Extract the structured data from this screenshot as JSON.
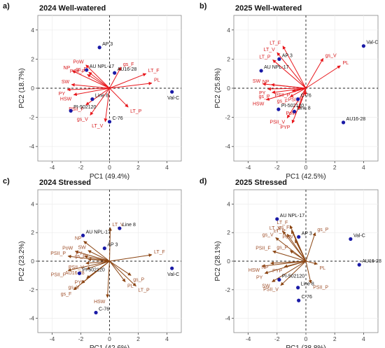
{
  "chart_data": [
    {
      "type": "scatter",
      "panel_label": "a)",
      "title": "2024 Well-watered",
      "xlabel": "PC1 (49.4%)",
      "ylabel": "PC2 (18.7%)",
      "xlim": [
        -5,
        5
      ],
      "ylim": [
        -5,
        5
      ],
      "xticks": [
        -4,
        -2,
        0,
        2,
        4
      ],
      "yticks": [
        -4,
        -2,
        0,
        2,
        4
      ],
      "points": [
        {
          "label": "AP 3",
          "x": -0.7,
          "y": 2.8
        },
        {
          "label": "AU NPL-17",
          "x": -1.6,
          "y": 1.25
        },
        {
          "label": "AU16-28",
          "x": 0.35,
          "y": 1.05
        },
        {
          "label": "Val-C",
          "x": 4.35,
          "y": -0.25
        },
        {
          "label": "Line 8",
          "x": -1.2,
          "y": -0.75
        },
        {
          "label": "PI-502120",
          "x": -2.7,
          "y": -1.55
        },
        {
          "label": "C-76",
          "x": 0.0,
          "y": -2.3
        }
      ],
      "loadings": [
        {
          "label": "PoW",
          "x": -1.65,
          "y": 1.6
        },
        {
          "label": "NP",
          "x": -2.6,
          "y": 1.2
        },
        {
          "label": "PSII_P",
          "x": -1.55,
          "y": 0.95
        },
        {
          "label": "gs_F",
          "x": 0.8,
          "y": 1.45
        },
        {
          "label": "LT_F",
          "x": 2.55,
          "y": 1.0
        },
        {
          "label": "PL",
          "x": 2.95,
          "y": 0.35
        },
        {
          "label": "SW",
          "x": -2.65,
          "y": 0.25
        },
        {
          "label": "PY",
          "x": -2.95,
          "y": -0.1
        },
        {
          "label": "HSW",
          "x": -2.5,
          "y": -0.45
        },
        {
          "label": "PSII_F",
          "x": -1.65,
          "y": -1.15
        },
        {
          "label": "gs_V",
          "x": -1.35,
          "y": -1.85
        },
        {
          "label": "LT_V",
          "x": -0.3,
          "y": -2.3
        },
        {
          "label": "LT_P",
          "x": 1.3,
          "y": -1.3
        },
        {
          "label": "gs_F",
          "x": -1.45,
          "y": 1.1
        }
      ]
    },
    {
      "type": "scatter",
      "panel_label": "b)",
      "title": "2025 Well-watered",
      "xlabel": "PC1 (42.5%)",
      "ylabel": "PC2 (25.8%)",
      "xlim": [
        -5,
        5
      ],
      "ylim": [
        -5,
        5
      ],
      "xticks": [
        -4,
        -2,
        0,
        2,
        4
      ],
      "yticks": [
        -4,
        -2,
        0,
        2,
        4
      ],
      "points": [
        {
          "label": "AP 3",
          "x": -1.85,
          "y": 2.0
        },
        {
          "label": "AU NPL-17",
          "x": -3.1,
          "y": 1.2
        },
        {
          "label": "Val-C",
          "x": 4.0,
          "y": 2.9
        },
        {
          "label": "C-76",
          "x": -0.55,
          "y": -0.75
        },
        {
          "label": "PI-502120",
          "x": -1.9,
          "y": -1.45
        },
        {
          "label": "Line 8",
          "x": -0.8,
          "y": -1.6
        },
        {
          "label": "AU16-28",
          "x": 2.6,
          "y": -2.35
        }
      ],
      "loadings": [
        {
          "label": "LT_F",
          "x": -1.6,
          "y": 2.9
        },
        {
          "label": "LT_V",
          "x": -2.0,
          "y": 2.45
        },
        {
          "label": "LT_P",
          "x": -2.3,
          "y": 1.95
        },
        {
          "label": "gs_V",
          "x": 1.2,
          "y": 2.05
        },
        {
          "label": "PL",
          "x": 2.4,
          "y": 1.55
        },
        {
          "label": "SW",
          "x": -3.0,
          "y": 0.3
        },
        {
          "label": "NP",
          "x": -2.4,
          "y": 0.25
        },
        {
          "label": "PY",
          "x": -2.65,
          "y": -0.05
        },
        {
          "label": "gs_P",
          "x": -2.35,
          "y": -0.3
        },
        {
          "label": "HSW",
          "x": -2.75,
          "y": -0.8
        },
        {
          "label": "gs_F",
          "x": -1.1,
          "y": -0.6
        },
        {
          "label": "PSII_P",
          "x": -0.95,
          "y": -0.2
        },
        {
          "label": "PSII_V",
          "x": -1.3,
          "y": -2.05
        },
        {
          "label": "PYP",
          "x": -0.95,
          "y": -2.4
        },
        {
          "label": "PoW",
          "x": -0.5,
          "y": -1.45
        },
        {
          "label": "PSII_F",
          "x": -0.05,
          "y": -0.5
        }
      ]
    },
    {
      "type": "scatter",
      "panel_label": "c)",
      "title": "2024 Stressed",
      "xlabel": "PC1 (42.6%)",
      "ylabel": "PC2 (23.2%)",
      "xlim": [
        -5,
        5
      ],
      "ylim": [
        -5,
        5
      ],
      "xticks": [
        -4,
        -2,
        0,
        2,
        4
      ],
      "yticks": [
        -4,
        -2,
        0,
        2,
        4
      ],
      "points": [
        {
          "label": "AU NPL-17",
          "x": -1.85,
          "y": 1.8
        },
        {
          "label": "AP 3",
          "x": -0.35,
          "y": 0.9
        },
        {
          "label": "Line 8",
          "x": 0.7,
          "y": 2.3
        },
        {
          "label": "Val-C",
          "x": 4.35,
          "y": -0.5
        },
        {
          "label": "PI-502120",
          "x": -2.1,
          "y": -0.85
        },
        {
          "label": "C-76",
          "x": -0.95,
          "y": -3.6
        }
      ],
      "loadings": [
        {
          "label": "LT_V",
          "x": 0.05,
          "y": 2.35
        },
        {
          "label": "NP",
          "x": -1.8,
          "y": 1.4
        },
        {
          "label": "PoW",
          "x": -2.4,
          "y": 0.7
        },
        {
          "label": "SW",
          "x": -1.5,
          "y": 0.75
        },
        {
          "label": "PSII_P",
          "x": -2.9,
          "y": 0.35
        },
        {
          "label": "PY",
          "x": -1.75,
          "y": 0.35
        },
        {
          "label": "gs_P",
          "x": -1.5,
          "y": 0.15
        },
        {
          "label": "PSII_V",
          "x": -1.65,
          "y": -0.15
        },
        {
          "label": "LT_F",
          "x": 2.95,
          "y": 0.45
        },
        {
          "label": "PSII_F",
          "x": -2.9,
          "y": -0.65
        },
        {
          "label": "AU16-28",
          "x": -1.6,
          "y": -0.55
        },
        {
          "label": "PYP",
          "x": -1.6,
          "y": -1.2
        },
        {
          "label": "gs_V",
          "x": -1.95,
          "y": -1.55
        },
        {
          "label": "gs_F",
          "x": -2.5,
          "y": -2.0
        },
        {
          "label": "gs_P",
          "x": 1.5,
          "y": -1.0
        },
        {
          "label": "PL",
          "x": 1.1,
          "y": -1.45
        },
        {
          "label": "LT_P",
          "x": 1.85,
          "y": -1.75
        },
        {
          "label": "HSW",
          "x": -0.15,
          "y": -2.55
        }
      ]
    },
    {
      "type": "scatter",
      "panel_label": "d)",
      "title": "2025 Stressed",
      "xlabel": "PC1 (38.8%)",
      "ylabel": "PC2 (28.1%)",
      "xlim": [
        -5,
        5
      ],
      "ylim": [
        -5,
        5
      ],
      "xticks": [
        -4,
        -2,
        0,
        2,
        4
      ],
      "yticks": [
        -4,
        -2,
        0,
        2,
        4
      ],
      "points": [
        {
          "label": "AU NPL-17",
          "x": -2.0,
          "y": 2.95
        },
        {
          "label": "Val-C",
          "x": 3.1,
          "y": 1.55
        },
        {
          "label": "AU16-28",
          "x": 3.7,
          "y": -0.25
        },
        {
          "label": "Line 8",
          "x": -0.55,
          "y": -1.85
        },
        {
          "label": "C-76",
          "x": -0.5,
          "y": -2.75
        },
        {
          "label": "PI-502120",
          "x": -1.85,
          "y": -1.3
        },
        {
          "label": "AP 3",
          "x": -0.5,
          "y": 1.7
        }
      ],
      "loadings": [
        {
          "label": "LT_F",
          "x": -1.1,
          "y": 2.5
        },
        {
          "label": "LT_V",
          "x": -1.6,
          "y": 2.1
        },
        {
          "label": "gs_F",
          "x": -1.0,
          "y": 2.15
        },
        {
          "label": "LT_P",
          "x": -1.3,
          "y": 1.9
        },
        {
          "label": "gs_V",
          "x": -2.1,
          "y": 1.65
        },
        {
          "label": "PoW",
          "x": -0.75,
          "y": 1.5
        },
        {
          "label": "gs_P",
          "x": 0.65,
          "y": 2.0
        },
        {
          "label": "PSII_F",
          "x": -2.3,
          "y": 0.7
        },
        {
          "label": "gs_P",
          "x": -1.1,
          "y": 0.75
        },
        {
          "label": "PL",
          "x": 0.8,
          "y": -0.2
        },
        {
          "label": "HSW",
          "x": -3.05,
          "y": -0.35
        },
        {
          "label": "NP",
          "x": -2.45,
          "y": -0.15
        },
        {
          "label": "PY",
          "x": -2.85,
          "y": -0.85
        },
        {
          "label": "PYP",
          "x": -1.5,
          "y": -0.4
        },
        {
          "label": "SW",
          "x": -2.35,
          "y": -1.45
        },
        {
          "label": "PSII_V",
          "x": -1.75,
          "y": -1.7
        },
        {
          "label": "PSII_P",
          "x": 0.35,
          "y": -1.55
        }
      ]
    }
  ]
}
